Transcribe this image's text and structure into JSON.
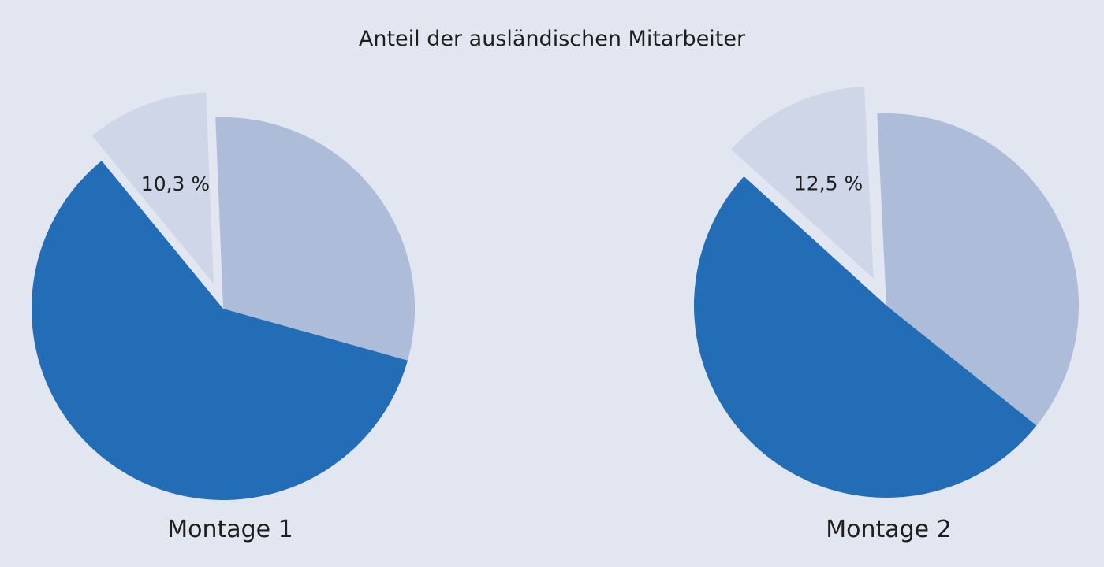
{
  "chart_data": [
    {
      "type": "pie",
      "title": "Anteil der ausländischen Mitarbeiter",
      "caption": "Montage 1",
      "slices": [
        {
          "value": 30.0,
          "color": "#adbcd9"
        },
        {
          "value": 59.7,
          "color": "#226db5"
        },
        {
          "value": 10.3,
          "label": "10,3 %",
          "color": "#ced6e8",
          "exploded": true
        }
      ]
    },
    {
      "type": "pie",
      "caption": "Montage 2",
      "slices": [
        {
          "value": 36.5,
          "color": "#adbcd9"
        },
        {
          "value": 51.0,
          "color": "#226db5"
        },
        {
          "value": 12.5,
          "label": "12,5 %",
          "color": "#ced6e8",
          "exploded": true
        }
      ]
    }
  ]
}
